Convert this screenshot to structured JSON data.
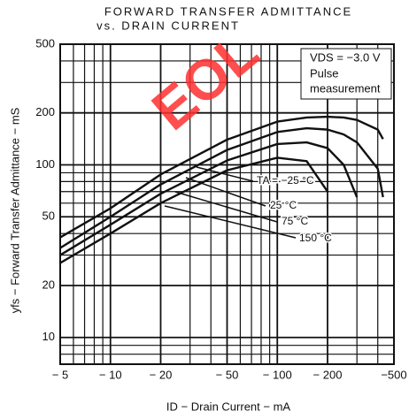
{
  "chart_data": {
    "type": "line",
    "title": "FORWARD TRANSFER ADMITTANCE",
    "subtitle": "vs. DRAIN CURRENT",
    "x_label": "ID − Drain Current − mA",
    "y_label": "yfs − Forward Transfer Admittance − mS",
    "annotations": [
      "VDS = −3.0 V",
      "Pulse",
      "measurement"
    ],
    "watermark": "EOL",
    "log_x": true,
    "log_y": true,
    "grid": true,
    "xlim": [
      -5,
      -500
    ],
    "ylim": [
      7,
      500
    ],
    "xticks": [
      {
        "value": -5,
        "label": "− 5"
      },
      {
        "value": -10,
        "label": "− 10"
      },
      {
        "value": -20,
        "label": "− 20"
      },
      {
        "value": -50,
        "label": "− 50"
      },
      {
        "value": -100,
        "label": "− 100"
      },
      {
        "value": -200,
        "label": "− 200"
      },
      {
        "value": -500,
        "label": "−500"
      }
    ],
    "xminor": [
      -6,
      -7,
      -8,
      -9,
      -30,
      -40,
      -60,
      -70,
      -80,
      -90,
      -300,
      -400
    ],
    "yticks": [
      10,
      20,
      50,
      100,
      200,
      500
    ],
    "yminor": [
      8,
      9,
      30,
      40,
      60,
      70,
      80,
      90,
      300,
      400
    ],
    "x": [
      -5,
      -10,
      -20,
      -50,
      -100,
      -150,
      -200,
      -250,
      -300,
      -400,
      -430
    ],
    "series": [
      {
        "name": "TA = −25 °C",
        "color": "#111111",
        "values": [
          38,
          56,
          88,
          140,
          178,
          188,
          190,
          188,
          182,
          160,
          141
        ]
      },
      {
        "name": "25 °C",
        "color": "#111111",
        "values": [
          33,
          50,
          77,
          122,
          155,
          163,
          160,
          150,
          135,
          95,
          65
        ]
      },
      {
        "name": "75 °C",
        "color": "#111111",
        "values": [
          30,
          45,
          68,
          106,
          132,
          135,
          125,
          100,
          65,
          null,
          null
        ]
      },
      {
        "name": "150 °C",
        "color": "#111111",
        "values": [
          27,
          40,
          60,
          93,
          110,
          105,
          70,
          null,
          null,
          null,
          null
        ]
      }
    ]
  }
}
